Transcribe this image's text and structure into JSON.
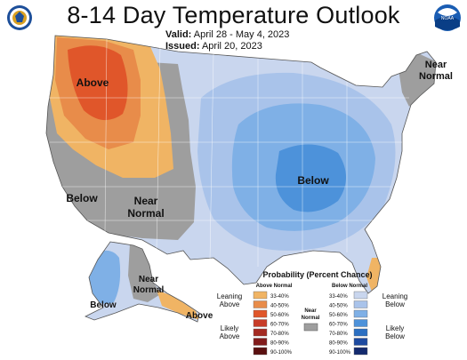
{
  "header": {
    "title": "8-14 Day Temperature Outlook",
    "valid_label": "Valid:",
    "valid_value": "April 28 - May 4, 2023",
    "issued_label": "Issued:",
    "issued_value": "April 20, 2023"
  },
  "logos": {
    "left": "noaa-department-of-commerce-seal-icon",
    "right": "noaa-logo-icon",
    "right_text": "NOAA"
  },
  "map_labels": {
    "above": "Above",
    "below_east": "Below",
    "below_west": "Below",
    "near_normal_west_1": "Near",
    "near_normal_west_2": "Normal",
    "near_normal_ne_1": "Near",
    "near_normal_ne_2": "Normal",
    "alaska_below": "Below",
    "alaska_near_1": "Near",
    "alaska_near_2": "Normal",
    "alaska_above": "Above"
  },
  "legend": {
    "title": "Probability (Percent Chance)",
    "above_header": "Above Normal",
    "below_header": "Below Normal",
    "leaning_above_1": "Leaning",
    "leaning_above_2": "Above",
    "likely_above_1": "Likely",
    "likely_above_2": "Above",
    "leaning_below_1": "Leaning",
    "leaning_below_2": "Below",
    "likely_below_1": "Likely",
    "likely_below_2": "Below",
    "near_normal_1": "Near",
    "near_normal_2": "Normal",
    "above_bins": [
      "33-40%",
      "40-50%",
      "50-60%",
      "60-70%",
      "70-80%",
      "80-90%",
      "90-100%"
    ],
    "below_bins": [
      "33-40%",
      "40-50%",
      "50-60%",
      "60-70%",
      "70-80%",
      "80-90%",
      "90-100%"
    ],
    "above_colors": [
      "#f0b464",
      "#e88c4a",
      "#e0562a",
      "#c83c28",
      "#a42a22",
      "#821c1c",
      "#5a1010"
    ],
    "below_colors": [
      "#c9d6ee",
      "#a9c3ea",
      "#7fb0e6",
      "#4d92da",
      "#2b6fc2",
      "#1d4aa0",
      "#142a6e"
    ],
    "near_color": "#9e9e9e"
  }
}
